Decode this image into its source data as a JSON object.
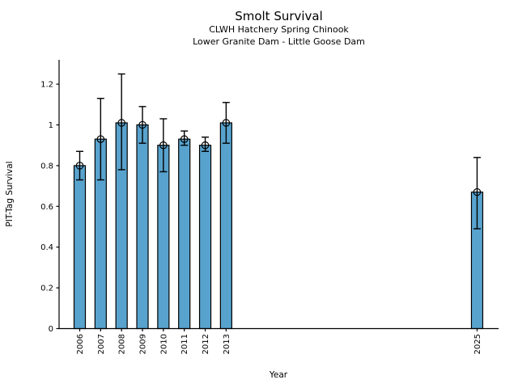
{
  "chart_data": {
    "type": "bar",
    "title": "Smolt Survival",
    "subtitles": [
      "CLWH Hatchery Spring Chinook",
      "Lower Granite Dam - Little Goose Dam"
    ],
    "xlabel": "Year",
    "ylabel": "PIT-Tag Survival",
    "categories": [
      "2006",
      "2007",
      "2008",
      "2009",
      "2010",
      "2011",
      "2012",
      "2013",
      "2025"
    ],
    "values": [
      0.8,
      0.93,
      1.01,
      1.0,
      0.9,
      0.93,
      0.9,
      1.01,
      0.67
    ],
    "error_low": [
      0.73,
      0.73,
      0.78,
      0.91,
      0.77,
      0.9,
      0.87,
      0.91,
      0.49
    ],
    "error_high": [
      0.87,
      1.13,
      1.25,
      1.09,
      1.03,
      0.97,
      0.94,
      1.11,
      0.84
    ],
    "ytick_values": [
      0,
      0.2,
      0.4,
      0.6,
      0.8,
      1.0,
      1.2
    ],
    "ytick_labels": [
      "0",
      "0.2",
      "0.4",
      "0.6",
      "0.8",
      "1",
      "1.2"
    ],
    "ylim": [
      0,
      1.32
    ],
    "xlim": [
      2005,
      2026.2
    ],
    "grid": false,
    "legend": null,
    "marker": "open-circle",
    "error_caps": true,
    "bar_color": "#58A3CE",
    "edge_color": "#000000",
    "axis_color": "#000000"
  }
}
